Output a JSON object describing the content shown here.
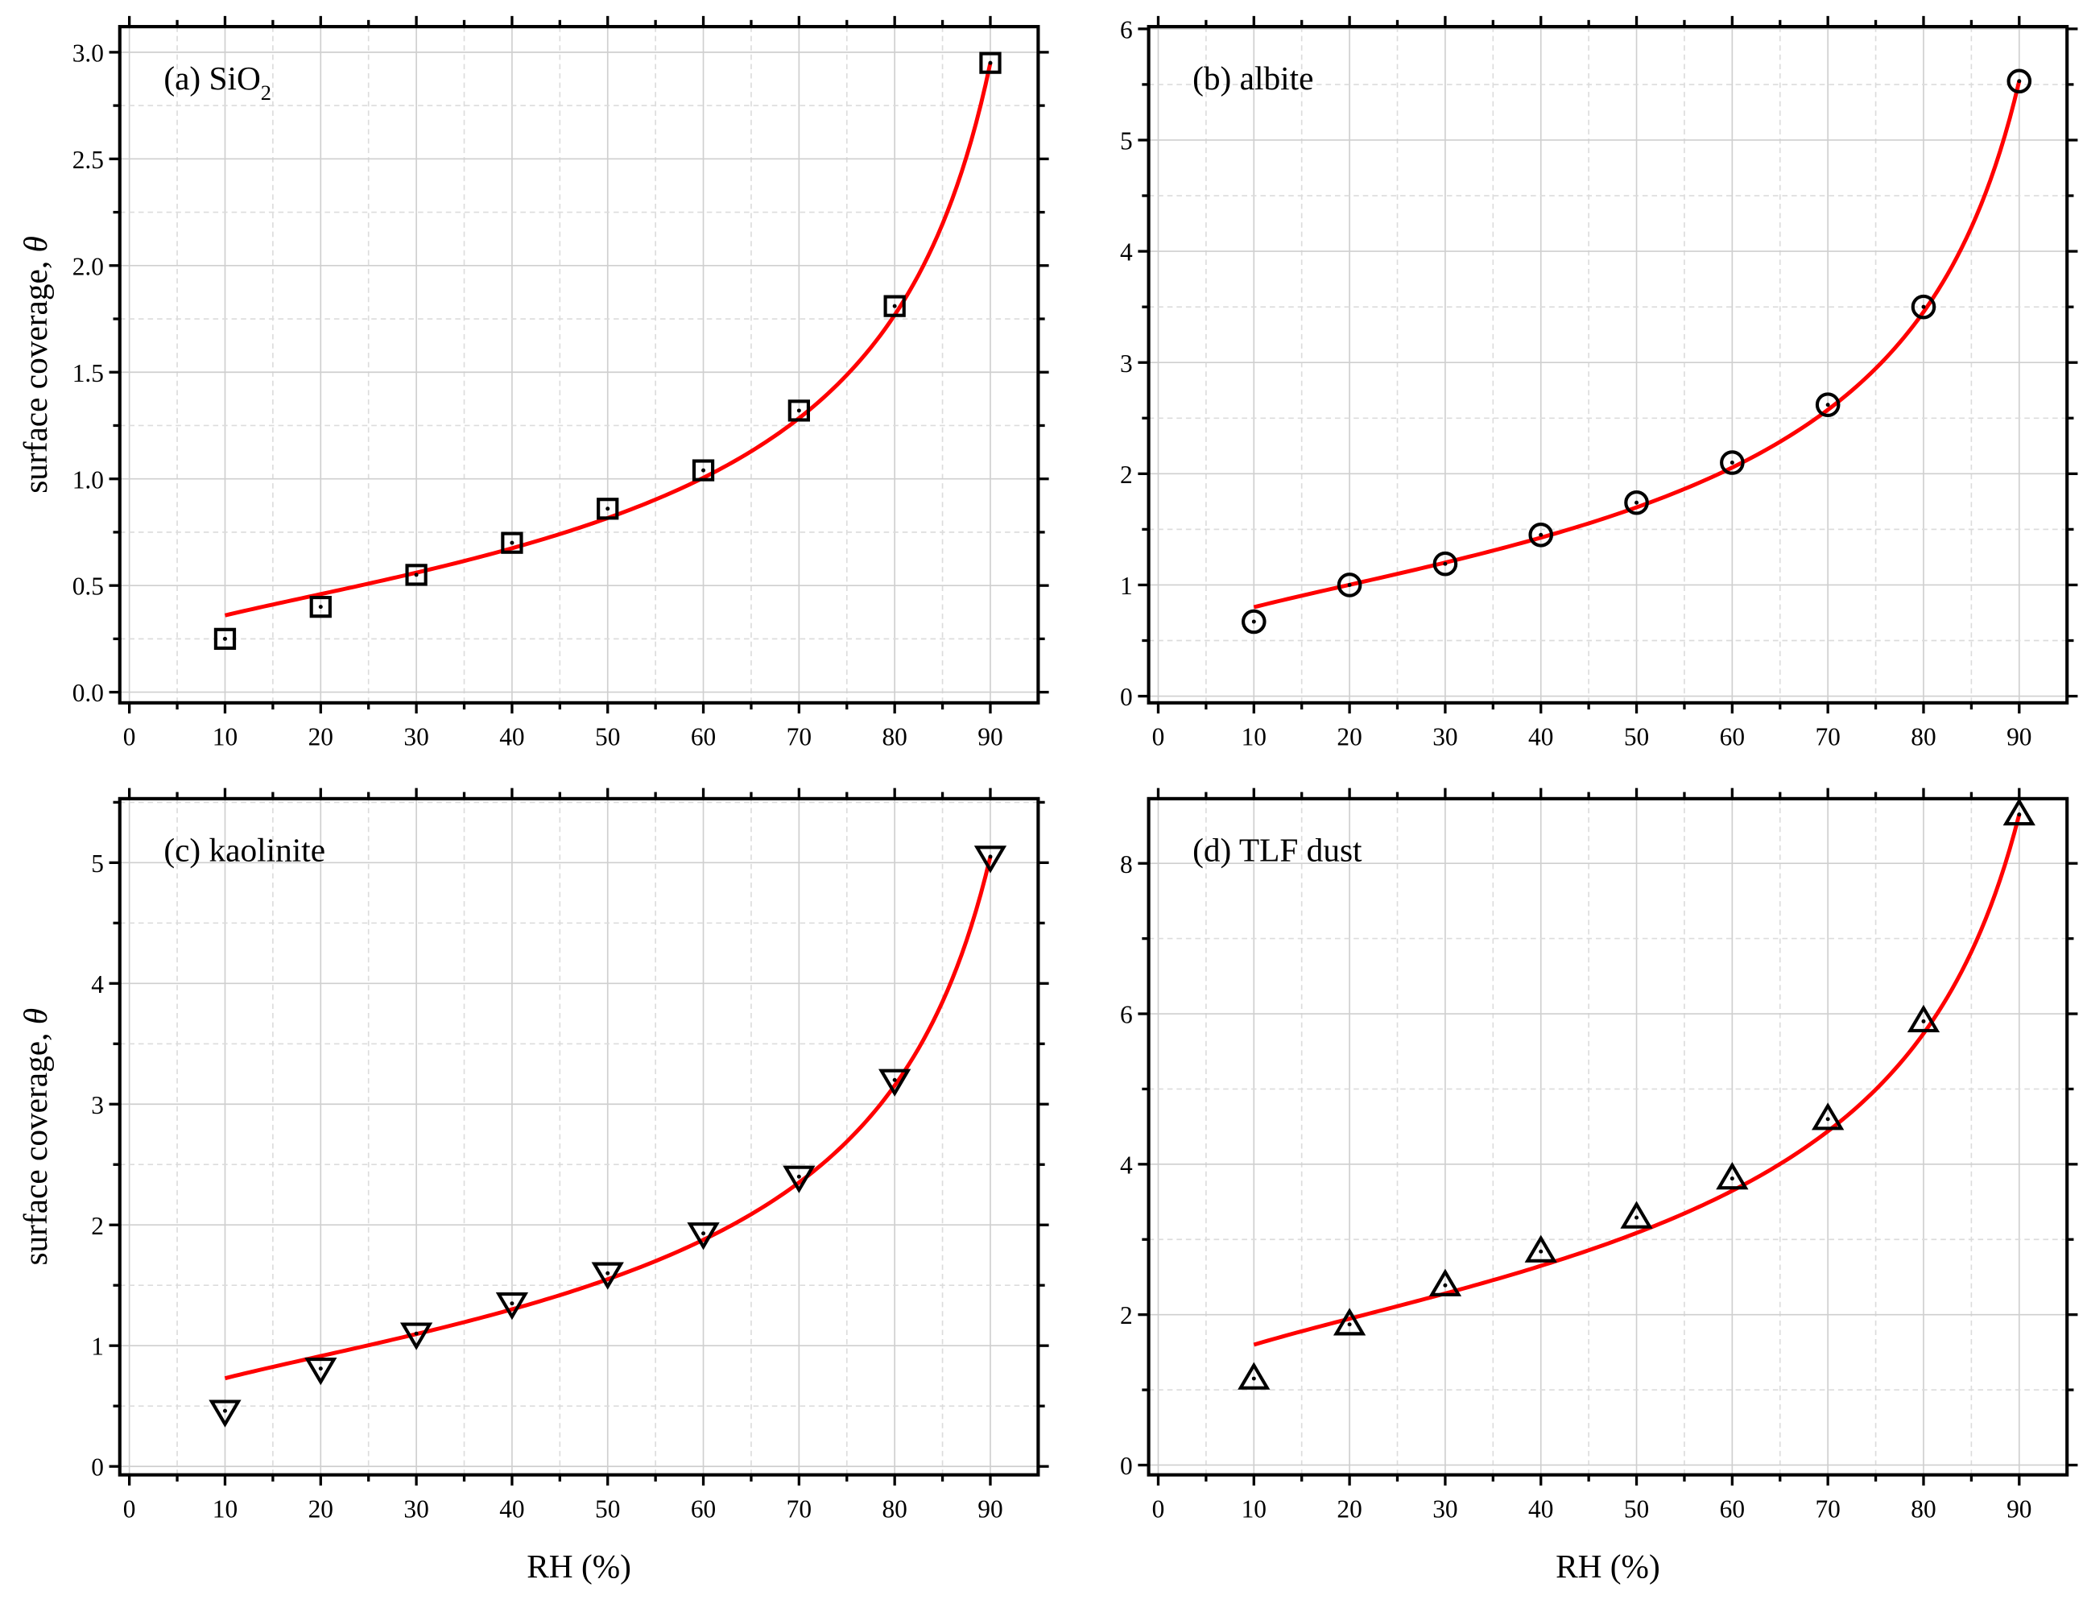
{
  "chart_data": [
    {
      "type": "scatter",
      "panel_label": "(a) SiO",
      "panel_label_sub": "2",
      "xlabel": "",
      "ylabel": "surface coverage, θ",
      "xlim": [
        -1,
        95
      ],
      "ylim": [
        -0.05,
        3.12
      ],
      "xticks": [
        "0",
        "10",
        "20",
        "30",
        "40",
        "50",
        "60",
        "70",
        "80",
        "90"
      ],
      "yticks": [
        "0.0",
        "0.5",
        "1.0",
        "1.5",
        "2.0",
        "2.5",
        "3.0"
      ],
      "ytick_values": [
        0,
        0.5,
        1.0,
        1.5,
        2.0,
        2.5,
        3.0
      ],
      "marker": "square",
      "x": [
        10,
        20,
        30,
        40,
        50,
        60,
        70,
        80,
        90
      ],
      "y": [
        0.25,
        0.4,
        0.55,
        0.7,
        0.86,
        1.04,
        1.32,
        1.81,
        2.95
      ],
      "fit": {
        "model": "FHH",
        "x_range": [
          10,
          90
        ],
        "y_start": 0.36,
        "y_end": 2.95,
        "color": "#ff0000"
      }
    },
    {
      "type": "scatter",
      "panel_label": "(b) albite",
      "panel_label_sub": "",
      "xlabel": "",
      "ylabel": "",
      "xlim": [
        -1,
        95
      ],
      "ylim": [
        -0.06,
        6.02
      ],
      "xticks": [
        "0",
        "10",
        "20",
        "30",
        "40",
        "50",
        "60",
        "70",
        "80",
        "90"
      ],
      "yticks": [
        "0",
        "1",
        "2",
        "3",
        "4",
        "5",
        "6"
      ],
      "ytick_values": [
        0,
        1,
        2,
        3,
        4,
        5,
        6
      ],
      "marker": "circle",
      "x": [
        10,
        20,
        30,
        40,
        50,
        60,
        70,
        80,
        90
      ],
      "y": [
        0.67,
        1.0,
        1.19,
        1.45,
        1.74,
        2.1,
        2.62,
        3.5,
        5.53
      ],
      "fit": {
        "model": "FHH",
        "x_range": [
          10,
          90
        ],
        "y_start": 0.8,
        "y_end": 5.53,
        "color": "#ff0000"
      }
    },
    {
      "type": "scatter",
      "panel_label": "(c) kaolinite",
      "panel_label_sub": "",
      "xlabel": "RH (%)",
      "ylabel": "surface coverage, θ",
      "xlim": [
        -1,
        95
      ],
      "ylim": [
        -0.07,
        5.53
      ],
      "xticks": [
        "0",
        "10",
        "20",
        "30",
        "40",
        "50",
        "60",
        "70",
        "80",
        "90"
      ],
      "yticks": [
        "0",
        "1",
        "2",
        "3",
        "4",
        "5"
      ],
      "ytick_values": [
        0,
        1,
        2,
        3,
        4,
        5
      ],
      "marker": "triangle-down",
      "x": [
        10,
        20,
        30,
        40,
        50,
        60,
        70,
        80,
        90
      ],
      "y": [
        0.46,
        0.81,
        1.1,
        1.35,
        1.6,
        1.93,
        2.4,
        3.2,
        5.05
      ],
      "fit": {
        "model": "FHH",
        "x_range": [
          10,
          90
        ],
        "y_start": 0.73,
        "y_end": 5.05,
        "color": "#ff0000"
      }
    },
    {
      "type": "scatter",
      "panel_label": "(d) TLF dust",
      "panel_label_sub": "",
      "xlabel": "RH (%)",
      "ylabel": "",
      "xlim": [
        -1,
        95
      ],
      "ylim": [
        -0.13,
        8.86
      ],
      "xticks": [
        "0",
        "10",
        "20",
        "30",
        "40",
        "50",
        "60",
        "70",
        "80",
        "90"
      ],
      "yticks": [
        "0",
        "2",
        "4",
        "6",
        "8"
      ],
      "ytick_values": [
        0,
        2,
        4,
        6,
        8
      ],
      "marker": "triangle-up",
      "x": [
        10,
        20,
        30,
        40,
        50,
        60,
        70,
        80,
        90
      ],
      "y": [
        1.15,
        1.87,
        2.39,
        2.84,
        3.29,
        3.81,
        4.6,
        5.9,
        8.65
      ],
      "fit": {
        "model": "FHH",
        "x_range": [
          10,
          90
        ],
        "y_start": 1.6,
        "y_end": 8.65,
        "color": "#ff0000"
      }
    }
  ]
}
